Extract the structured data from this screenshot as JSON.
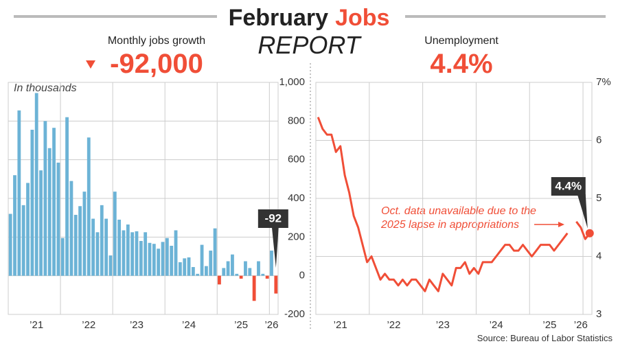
{
  "header": {
    "title": "February",
    "title_highlight": "Jobs",
    "subtitle": "REPORT"
  },
  "source": "Source: Bureau of Labor Statistics",
  "chart_data": [
    {
      "type": "bar",
      "title": "Monthly jobs growth",
      "headline": "-92,000",
      "annotation": "In thousands",
      "categories": [
        null,
        null,
        null,
        null,
        null,
        null,
        "’21",
        null,
        null,
        null,
        null,
        null,
        null,
        null,
        null,
        null,
        null,
        null,
        "’22",
        null,
        null,
        null,
        null,
        null,
        null,
        null,
        null,
        null,
        null,
        "’23",
        null,
        null,
        null,
        null,
        null,
        null,
        null,
        null,
        null,
        null,
        null,
        "’24",
        null,
        null,
        null,
        null,
        null,
        null,
        null,
        null,
        null,
        null,
        null,
        "’25",
        null,
        null,
        null,
        null,
        null,
        null,
        "’26",
        null
      ],
      "values": [
        320,
        520,
        855,
        365,
        480,
        755,
        945,
        545,
        800,
        660,
        765,
        585,
        195,
        820,
        490,
        315,
        360,
        435,
        715,
        295,
        225,
        365,
        295,
        105,
        435,
        290,
        235,
        265,
        225,
        230,
        180,
        225,
        170,
        165,
        140,
        175,
        195,
        155,
        235,
        70,
        90,
        95,
        45,
        10,
        160,
        50,
        130,
        245,
        -45,
        40,
        75,
        110,
        10,
        -15,
        75,
        40,
        -130,
        75,
        10,
        -15,
        130,
        -92
      ],
      "color": "#6cb3d6",
      "negative_color": "#f04e37",
      "ylim": [
        -200,
        1000
      ],
      "yticks": [
        {
          "value": 1000,
          "label": "1,000"
        },
        800,
        600,
        400,
        200,
        0,
        -200
      ],
      "grid": true
    },
    {
      "type": "line",
      "title": "Unemployment",
      "headline": "4.4%",
      "annotation": [
        "Oct. data unavailable due to the",
        "2025 lapse in appropriations"
      ],
      "categories": [
        null,
        null,
        null,
        null,
        null,
        "’21",
        null,
        null,
        null,
        null,
        null,
        null,
        null,
        null,
        null,
        null,
        null,
        "’22",
        null,
        null,
        null,
        null,
        null,
        null,
        null,
        null,
        null,
        null,
        "’23",
        null,
        null,
        null,
        null,
        null,
        null,
        null,
        null,
        null,
        null,
        null,
        "’24",
        null,
        null,
        null,
        null,
        null,
        null,
        null,
        null,
        null,
        null,
        null,
        "’25",
        null,
        null,
        null,
        null,
        null,
        null,
        "’26",
        null,
        null
      ],
      "values": [
        6.4,
        6.2,
        6.1,
        6.1,
        5.8,
        5.9,
        5.4,
        5.1,
        4.7,
        4.5,
        4.2,
        3.9,
        4.0,
        3.8,
        3.6,
        3.7,
        3.6,
        3.6,
        3.5,
        3.6,
        3.5,
        3.6,
        3.6,
        3.5,
        3.4,
        3.6,
        3.5,
        3.4,
        3.7,
        3.6,
        3.5,
        3.8,
        3.8,
        3.9,
        3.7,
        3.8,
        3.7,
        3.9,
        3.9,
        3.9,
        4.0,
        4.1,
        4.2,
        4.2,
        4.1,
        4.1,
        4.2,
        4.1,
        4.0,
        4.1,
        4.2,
        4.2,
        4.2,
        4.1,
        4.2,
        4.3,
        4.4,
        null,
        4.6,
        4.5,
        4.3,
        4.4
      ],
      "value_labels": [
        null,
        null,
        null,
        null,
        null,
        null,
        null,
        null,
        null,
        null,
        null,
        null,
        null,
        null,
        null,
        null,
        null,
        null,
        null,
        null,
        null,
        null,
        null,
        null,
        null,
        null,
        null,
        null,
        null,
        null,
        null,
        null,
        null,
        null,
        null,
        null,
        null,
        null,
        null,
        null,
        null,
        null,
        null,
        null,
        null,
        null,
        null,
        null,
        null,
        null,
        null,
        null,
        null,
        null,
        null,
        null,
        null,
        null,
        null,
        null,
        null,
        "4.4%"
      ],
      "color": "#f04e37",
      "ylim": [
        3,
        7
      ],
      "yticks": [
        3,
        4,
        5,
        6,
        {
          "value": 7,
          "label": "7%"
        }
      ],
      "grid": true
    }
  ]
}
